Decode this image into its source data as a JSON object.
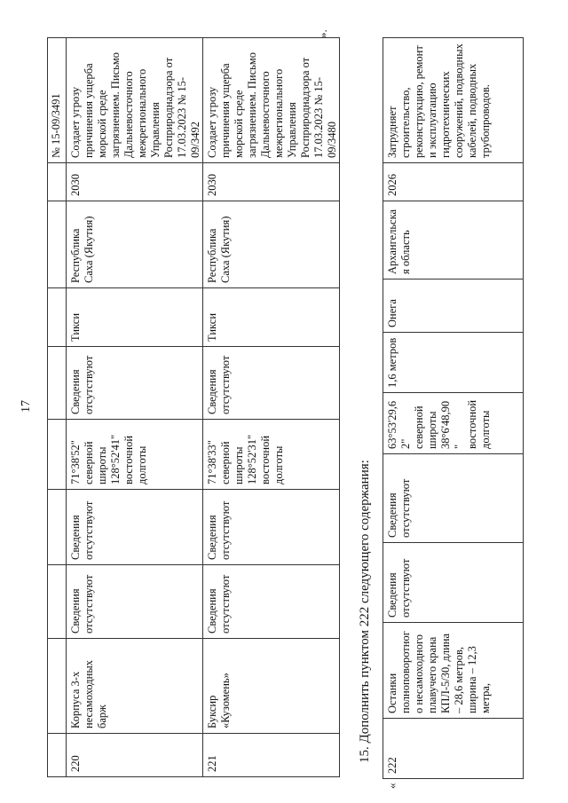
{
  "page_number": "17",
  "close_quote": "».",
  "open_quote": "«",
  "section_title": "15. Дополнить пунктом 222 следующего содержания:",
  "table1": {
    "continuation_note": "№ 15-09/3491",
    "rows": [
      {
        "num": "220",
        "name": "Корпуса 3-х несамоходных барж",
        "c3": "Сведения отсутствуют",
        "c4": "Сведения отсутствуют",
        "coords": "71°38'52\" северной широты 128°52'41\" восточной долготы",
        "c6": "Сведения отсутствуют",
        "place": "Тикси",
        "region": "Республика Саха (Якутия)",
        "year": "2030",
        "note": "Создает угрозу причинения ущерба морской среде загрязнением. Письмо Дальневосточного межрегионального Управления Росприроднадзора от 17.03.2023 № 15-09/3492"
      },
      {
        "num": "221",
        "name": "Буксир «Кузомень»",
        "c3": "Сведения отсутствуют",
        "c4": "Сведения отсутствуют",
        "coords": "71°38'33\" северной широты 128°52'31\" восточной долготы",
        "c6": "Сведения отсутствуют",
        "place": "Тикси",
        "region": "Республика Саха (Якутия)",
        "year": "2030",
        "note": "Создает угрозу причинения ущерба морской среде загрязнением. Письмо Дальневосточного межрегионального Управления Росприроднадзора от 17.03.2023 № 15-09/3480"
      }
    ]
  },
  "table2": {
    "rows": [
      {
        "num": "222",
        "name": "Останки полноповоротного несамоходного плавучего крана КПЛ-5/30, длина – 28,6 метров, ширина – 12,3 метра,",
        "c3": "Сведения отсутствуют",
        "c4": "Сведения отсутствуют",
        "coords": "63°53'29,62\" северной широты 38°6'48,90\" восточной долготы",
        "c6": "1,6 метров",
        "place": "Онега",
        "region": "Архангельская область",
        "year": "2026",
        "note": "Затрудняет строительство, реконструкцию, ремонт и эксплуатацию гидротехнических сооружений, подводных кабелей, подводных трубопроводов."
      }
    ]
  }
}
